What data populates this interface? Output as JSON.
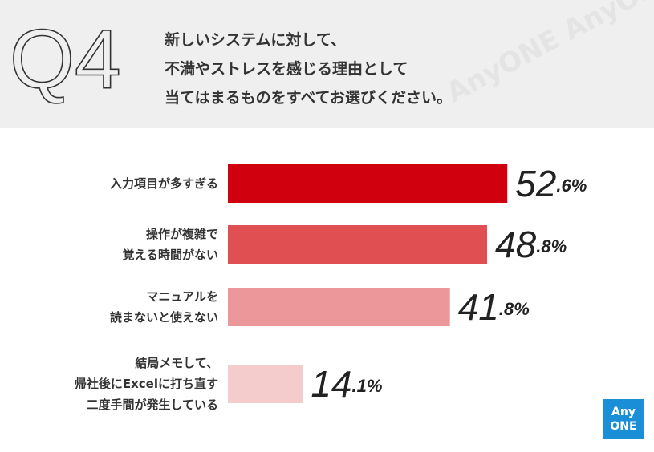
{
  "header": {
    "number": "Q4",
    "question": "新しいシステムに対して、\n不満やストレスを感じる理由として\n当てはまるものをすべてお選びください。",
    "watermark": "AnyONE AnyONE AnyONE"
  },
  "logo": {
    "line1": "Any",
    "line2": "ONE"
  },
  "chart_data": {
    "type": "bar",
    "orientation": "horizontal",
    "categories": [
      "入力項目が多すぎる",
      "操作が複雑で\n覚える時間がない",
      "マニュアルを\n読まないと使えない",
      "結局メモして、\n帰社後にExcelに打ち直す\n二度手間が発生している"
    ],
    "values": [
      52.6,
      48.8,
      41.8,
      14.1
    ],
    "value_labels": [
      "52.6%",
      "48.8%",
      "41.8%",
      "14.1%"
    ],
    "colors": [
      "#d0000f",
      "#e05052",
      "#ec9799",
      "#f5cccc"
    ],
    "xlim": [
      0,
      100
    ]
  }
}
